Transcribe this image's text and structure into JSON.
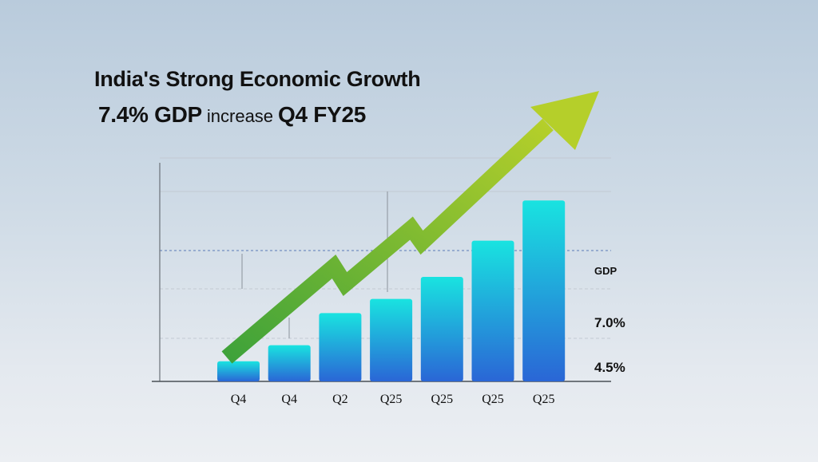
{
  "title": "India's Strong Economic Growth",
  "subtitle": {
    "value": "7.4% GDP",
    "word": "increase",
    "period": "Q4 FY25"
  },
  "colors": {
    "bar_top": "#19e3e0",
    "bar_bottom": "#2a66d6",
    "arrow_start": "#3ea23a",
    "arrow_end": "#b5cf2a",
    "grid": "#c2c9d2",
    "dashed": "#5a79b6"
  },
  "chart_data": {
    "type": "bar",
    "categories": [
      "Q4",
      "Q4",
      "Q2",
      "Q25",
      "Q25",
      "Q25",
      "Q25"
    ],
    "values": [
      1.0,
      1.8,
      3.4,
      4.1,
      5.2,
      7.0,
      9.0
    ],
    "right_labels": [
      "GDP",
      "7.0%",
      "4.5%"
    ],
    "trend_arrow": true,
    "ylim": [
      0,
      10
    ]
  }
}
